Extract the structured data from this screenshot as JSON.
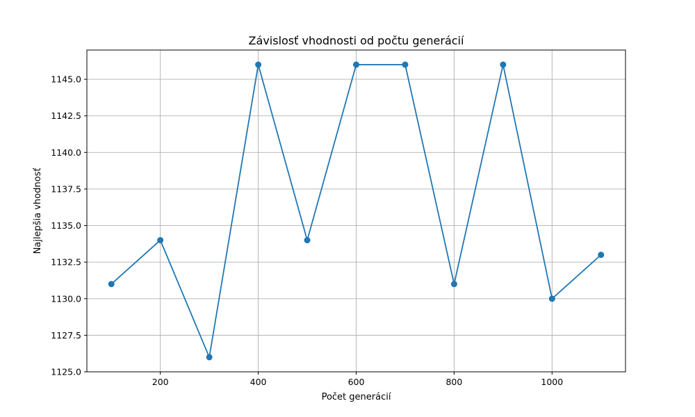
{
  "chart_data": {
    "type": "line",
    "title": "Závislosť vhodnosti od počtu generácií",
    "xlabel": "Počet generácií",
    "ylabel": "Najlepšia vhodnosť",
    "x": [
      100,
      200,
      300,
      400,
      500,
      600,
      700,
      800,
      900,
      1000,
      1100
    ],
    "series": [
      {
        "values": [
          1131,
          1134,
          1126,
          1146,
          1134,
          1146,
          1146,
          1131,
          1146,
          1130,
          1133
        ]
      }
    ],
    "xlim": [
      50,
      1150
    ],
    "ylim": [
      1125,
      1147
    ],
    "xticks": [
      200,
      400,
      600,
      800,
      1000
    ],
    "xtick_labels": [
      "200",
      "400",
      "600",
      "800",
      "1000"
    ],
    "yticks": [
      1125.0,
      1127.5,
      1130.0,
      1132.5,
      1135.0,
      1137.5,
      1140.0,
      1142.5,
      1145.0
    ],
    "ytick_labels": [
      "1125.0",
      "1127.5",
      "1130.0",
      "1132.5",
      "1135.0",
      "1137.5",
      "1140.0",
      "1142.5",
      "1145.0"
    ],
    "grid": true,
    "marker": "circle",
    "colors": {
      "line": "#1f77b4"
    }
  }
}
